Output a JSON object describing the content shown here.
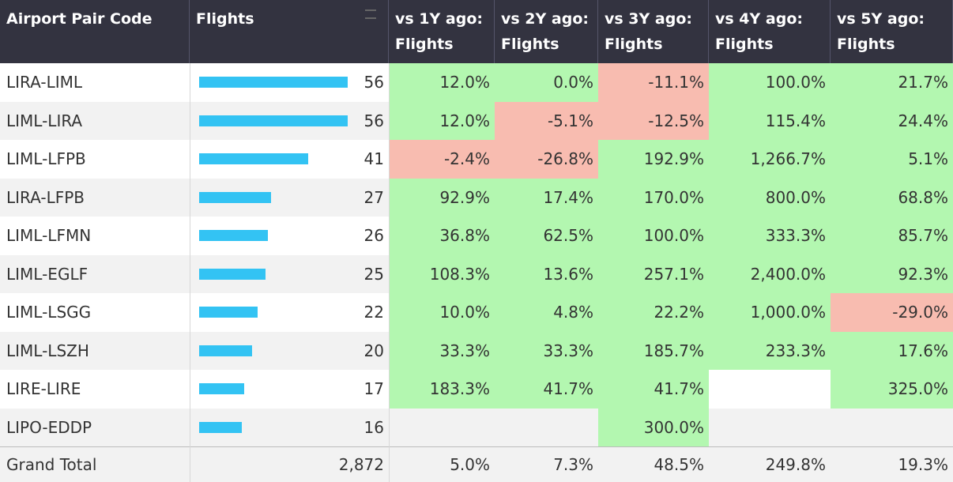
{
  "table": {
    "headers": [
      "Airport Pair Code",
      "Flights",
      "vs 1Y ago: Flights",
      "vs 2Y ago: Flights",
      "vs 3Y ago: Flights",
      "vs 4Y ago: Flights",
      "vs 5Y ago: Flights"
    ],
    "bar_color": "#33c3f3",
    "positive_color": "#b3f7b0",
    "negative_color": "#f8bcb0",
    "rows": [
      {
        "code": "LIRA-LIML",
        "flights": 56,
        "changes": [
          "12.0%",
          "0.0%",
          "-11.1%",
          "100.0%",
          "21.7%"
        ]
      },
      {
        "code": "LIML-LIRA",
        "flights": 56,
        "changes": [
          "12.0%",
          "-5.1%",
          "-12.5%",
          "115.4%",
          "24.4%"
        ]
      },
      {
        "code": "LIML-LFPB",
        "flights": 41,
        "changes": [
          "-2.4%",
          "-26.8%",
          "192.9%",
          "1,266.7%",
          "5.1%"
        ]
      },
      {
        "code": "LIRA-LFPB",
        "flights": 27,
        "changes": [
          "92.9%",
          "17.4%",
          "170.0%",
          "800.0%",
          "68.8%"
        ]
      },
      {
        "code": "LIML-LFMN",
        "flights": 26,
        "changes": [
          "36.8%",
          "62.5%",
          "100.0%",
          "333.3%",
          "85.7%"
        ]
      },
      {
        "code": "LIML-EGLF",
        "flights": 25,
        "changes": [
          "108.3%",
          "13.6%",
          "257.1%",
          "2,400.0%",
          "92.3%"
        ]
      },
      {
        "code": "LIML-LSGG",
        "flights": 22,
        "changes": [
          "10.0%",
          "4.8%",
          "22.2%",
          "1,000.0%",
          "-29.0%"
        ]
      },
      {
        "code": "LIML-LSZH",
        "flights": 20,
        "changes": [
          "33.3%",
          "33.3%",
          "185.7%",
          "233.3%",
          "17.6%"
        ]
      },
      {
        "code": "LIRE-LIRE",
        "flights": 17,
        "changes": [
          "183.3%",
          "41.7%",
          "41.7%",
          null,
          "325.0%"
        ]
      },
      {
        "code": "LIPO-EDDP",
        "flights": 16,
        "changes": [
          null,
          null,
          "300.0%",
          null,
          null
        ]
      }
    ],
    "total": {
      "label": "Grand Total",
      "flights": "2,872",
      "changes": [
        "5.0%",
        "7.3%",
        "48.5%",
        "249.8%",
        "19.3%"
      ]
    }
  }
}
